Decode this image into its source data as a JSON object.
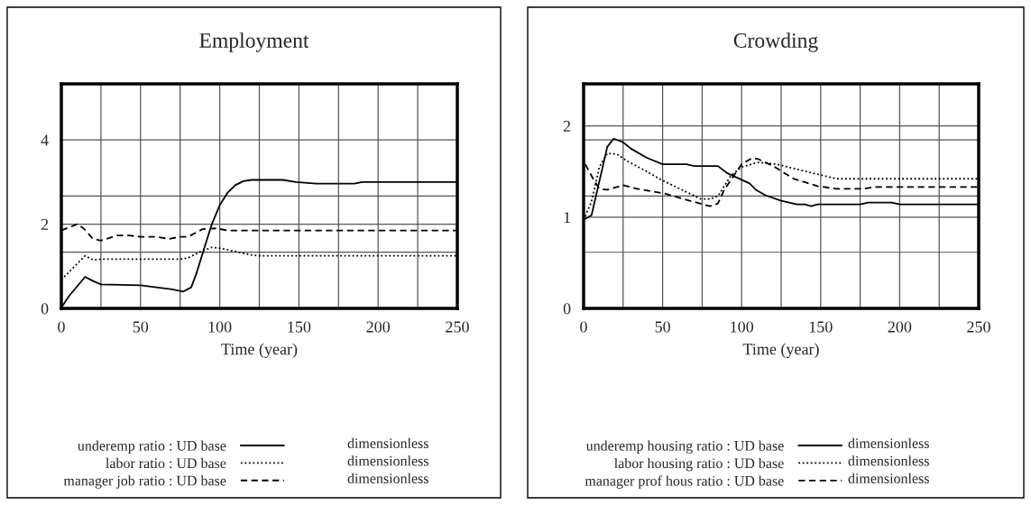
{
  "chart_data": [
    {
      "type": "line",
      "title": "Employment",
      "xlabel": "Time (year)",
      "xlim": [
        0,
        250
      ],
      "xticks": [
        0,
        {
          "value": 25,
          "label": null
        },
        50,
        {
          "value": 75,
          "label": null
        },
        100,
        {
          "value": 125,
          "label": null
        },
        150,
        {
          "value": 175,
          "label": null
        },
        200,
        {
          "value": 225,
          "label": null
        },
        250
      ],
      "ylim": [
        0,
        5.33
      ],
      "yticks": [
        0,
        {
          "value": 1.333,
          "label": null
        },
        2,
        {
          "value": 2.667,
          "label": null
        },
        {
          "value": 4,
          "label": "4"
        }
      ],
      "grid": true,
      "legend": "bottom",
      "annotations": [
        "dimensionless",
        "dimensionless",
        "dimensionless"
      ],
      "series": [
        {
          "name": "underemp ratio : UD base",
          "color": "#000000",
          "line_style": "solid",
          "x": [
            0,
            5,
            15,
            20,
            25,
            50,
            60,
            70,
            77,
            82,
            85,
            90,
            95,
            100,
            105,
            110,
            115,
            120,
            140,
            148,
            161,
            185,
            190,
            250
          ],
          "values": [
            0.02,
            0.3,
            0.75,
            0.65,
            0.57,
            0.55,
            0.5,
            0.45,
            0.4,
            0.5,
            0.8,
            1.4,
            2.0,
            2.45,
            2.75,
            2.93,
            3.02,
            3.05,
            3.05,
            3.0,
            2.96,
            2.96,
            3.0,
            3.0
          ]
        },
        {
          "name": "labor ratio : UD base",
          "color": "#000000",
          "line_style": "dotted",
          "x": [
            0,
            15,
            20,
            25,
            50,
            75,
            80,
            88,
            95,
            100,
            110,
            120,
            125,
            250
          ],
          "values": [
            0.68,
            1.25,
            1.15,
            1.17,
            1.17,
            1.17,
            1.2,
            1.35,
            1.45,
            1.43,
            1.35,
            1.27,
            1.25,
            1.25
          ]
        },
        {
          "name": "manager job ratio : UD base",
          "color": "#000000",
          "line_style": "dashed",
          "x": [
            0,
            10,
            14,
            20,
            25,
            35,
            43,
            50,
            60,
            68,
            75,
            80,
            89,
            98,
            105,
            250
          ],
          "values": [
            1.85,
            2.0,
            1.9,
            1.65,
            1.61,
            1.73,
            1.73,
            1.7,
            1.7,
            1.65,
            1.7,
            1.7,
            1.88,
            1.9,
            1.85,
            1.85
          ]
        }
      ]
    },
    {
      "type": "line",
      "title": "Crowding",
      "xlabel": "Time (year)",
      "xlim": [
        0,
        250
      ],
      "xticks": [
        0,
        {
          "value": 25,
          "label": null
        },
        50,
        {
          "value": 75,
          "label": null
        },
        100,
        {
          "value": 125,
          "label": null
        },
        150,
        {
          "value": 175,
          "label": null
        },
        200,
        {
          "value": 225,
          "label": null
        },
        250
      ],
      "ylim": [
        0,
        2.46
      ],
      "yticks": [
        0,
        {
          "value": 0.615,
          "label": null
        },
        1,
        {
          "value": 1.231,
          "label": null
        },
        {
          "value": 1.846,
          "label": null
        },
        2
      ],
      "grid": true,
      "legend": "bottom",
      "annotations": [
        "dimensionless",
        "dimensionless",
        "dimensionless"
      ],
      "series": [
        {
          "name": "underemp housing ratio : UD base",
          "color": "#000000",
          "line_style": "solid",
          "x": [
            1,
            5,
            15,
            19,
            25,
            30,
            40,
            50,
            65,
            70,
            85,
            91,
            105,
            109,
            115,
            125,
            135,
            140,
            144,
            148,
            175,
            180,
            195,
            200,
            250
          ],
          "values": [
            0.98,
            1.02,
            1.77,
            1.86,
            1.82,
            1.75,
            1.65,
            1.58,
            1.58,
            1.56,
            1.56,
            1.48,
            1.37,
            1.3,
            1.24,
            1.18,
            1.14,
            1.14,
            1.12,
            1.14,
            1.14,
            1.16,
            1.16,
            1.14,
            1.14
          ]
        },
        {
          "name": "labor housing ratio : UD base",
          "color": "#000000",
          "line_style": "dotted",
          "x": [
            1,
            5,
            10,
            15,
            21,
            28,
            40,
            49,
            61,
            74,
            80,
            85,
            93,
            100,
            110,
            122,
            129,
            148,
            160,
            250
          ],
          "values": [
            1.01,
            1.17,
            1.55,
            1.7,
            1.69,
            1.61,
            1.5,
            1.41,
            1.31,
            1.2,
            1.2,
            1.23,
            1.45,
            1.55,
            1.6,
            1.58,
            1.55,
            1.47,
            1.42,
            1.42
          ]
        },
        {
          "name": "manager prof hous ratio : UD base",
          "color": "#000000",
          "line_style": "dashed",
          "x": [
            1,
            7,
            10,
            15,
            25,
            34,
            51,
            65,
            80,
            85,
            89,
            100,
            106,
            110,
            120,
            133,
            148,
            160,
            177,
            184,
            250
          ],
          "values": [
            1.58,
            1.39,
            1.31,
            1.3,
            1.35,
            1.31,
            1.26,
            1.19,
            1.12,
            1.15,
            1.3,
            1.58,
            1.64,
            1.64,
            1.56,
            1.42,
            1.34,
            1.31,
            1.31,
            1.33,
            1.33
          ]
        }
      ]
    }
  ]
}
